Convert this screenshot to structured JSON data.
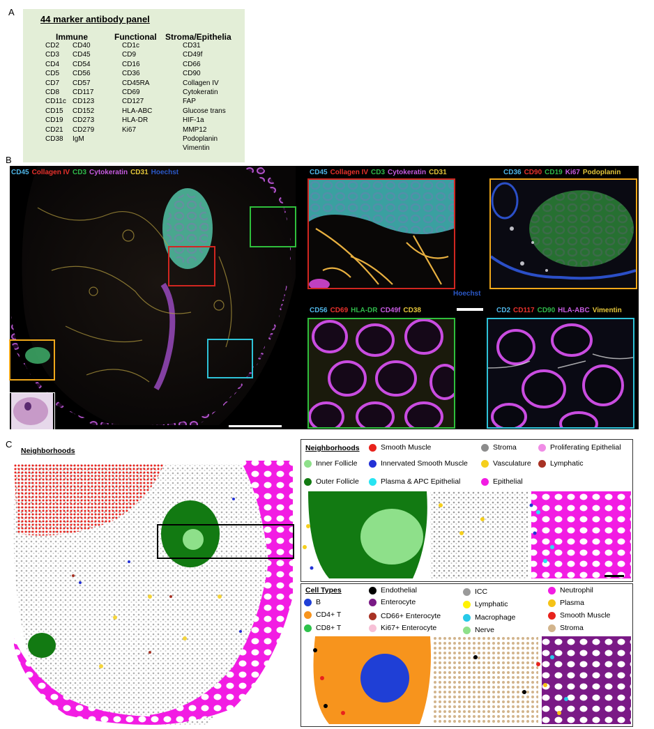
{
  "panel_a": {
    "letter": "A",
    "title": "44 marker antibody panel",
    "headers": {
      "immune": "Immune",
      "functional": "Functional",
      "stroma": "Stroma/Epithelia"
    },
    "immune_col1": [
      "CD2",
      "CD3",
      "CD4",
      "CD5",
      "CD7",
      "CD8",
      "CD11c",
      "CD15",
      "CD19",
      "CD21",
      "CD38"
    ],
    "immune_col2": [
      "CD40",
      "CD45",
      "CD54",
      "CD56",
      "CD57",
      "CD117",
      "CD123",
      "CD152",
      "CD273",
      "CD279",
      "IgM"
    ],
    "functional": [
      "CD1c",
      "CD9",
      "CD16",
      "CD36",
      "CD45RA",
      "CD69",
      "CD127",
      "HLA-ABC",
      "HLA-DR",
      "Ki67"
    ],
    "stroma": [
      "CD31",
      "CD49f",
      "CD66",
      "CD90",
      "Collagen IV",
      "Cytokeratin",
      "FAP",
      "Glucose trans",
      "HIF-1a",
      "MMP12",
      "Podoplanin",
      "Vimentin"
    ]
  },
  "panel_b": {
    "letter": "B",
    "main_labels": [
      {
        "text": "CD45",
        "color": "#4fb6e8"
      },
      {
        "text": "Collagen IV",
        "color": "#e8312c"
      },
      {
        "text": "CD3",
        "color": "#2fb84a"
      },
      {
        "text": "Cytokeratin",
        "color": "#c65be0"
      },
      {
        "text": "CD31",
        "color": "#e3c53a"
      },
      {
        "text": "Hoechst",
        "color": "#2b58c7"
      }
    ],
    "inset1_labels": [
      {
        "text": "CD45",
        "color": "#4fb6e8"
      },
      {
        "text": "Collagen IV",
        "color": "#e8312c"
      },
      {
        "text": "CD3",
        "color": "#2fb84a"
      },
      {
        "text": "Cytokeratin",
        "color": "#c65be0"
      },
      {
        "text": "CD31",
        "color": "#e3c53a"
      }
    ],
    "inset1_extra": {
      "text": "Hoechst",
      "color": "#2b58c7"
    },
    "inset2_labels": [
      {
        "text": "CD36",
        "color": "#4fb6e8"
      },
      {
        "text": "CD90",
        "color": "#e8312c"
      },
      {
        "text": "CD19",
        "color": "#2fb84a"
      },
      {
        "text": "Ki67",
        "color": "#c65be0"
      },
      {
        "text": "Podoplanin",
        "color": "#e3c53a"
      }
    ],
    "inset3_labels": [
      {
        "text": "CD56",
        "color": "#4fb6e8"
      },
      {
        "text": "CD69",
        "color": "#e8312c"
      },
      {
        "text": "HLA-DR",
        "color": "#2fb84a"
      },
      {
        "text": "CD49f",
        "color": "#c65be0"
      },
      {
        "text": "CD38",
        "color": "#e3c53a"
      }
    ],
    "inset4_labels": [
      {
        "text": "CD2",
        "color": "#4fb6e8"
      },
      {
        "text": "CD117",
        "color": "#e8312c"
      },
      {
        "text": "CD90",
        "color": "#2fb84a"
      },
      {
        "text": "HLA-ABC",
        "color": "#c65be0"
      },
      {
        "text": "Vimentin",
        "color": "#e3c53a"
      }
    ]
  },
  "panel_c": {
    "letter": "C",
    "map_title": "Neighborhoods",
    "neighborhoods_title": "Neighborhoods",
    "neighborhoods": [
      {
        "label": "Smooth Muscle",
        "color": "#e8221c"
      },
      {
        "label": "Stroma",
        "color": "#8c8c8c"
      },
      {
        "label": "Proliferating Epithelial",
        "color": "#f08ce6"
      },
      {
        "label": "Inner Follicle",
        "color": "#8ee08a"
      },
      {
        "label": "Innervated Smooth Muscle",
        "color": "#2331d6"
      },
      {
        "label": "Vasculature",
        "color": "#f5cf1c"
      },
      {
        "label": "Lymphatic",
        "color": "#a83224"
      },
      {
        "label": "Outer Follicle",
        "color": "#127a12"
      },
      {
        "label": "Plasma & APC Epithelial",
        "color": "#27e4f2"
      },
      {
        "label": "Epithelial",
        "color": "#f21ce3"
      }
    ],
    "celltypes_title": "Cell Types",
    "celltypes": [
      {
        "label": "B",
        "color": "#1f3fd6"
      },
      {
        "label": "Endothelial",
        "color": "#000000"
      },
      {
        "label": "ICC",
        "color": "#9a9a9a"
      },
      {
        "label": "Neutrophil",
        "color": "#f21ce3"
      },
      {
        "label": "Enterocyte",
        "color": "#7a1a86"
      },
      {
        "label": "Lymphatic",
        "color": "#fff200"
      },
      {
        "label": "Plasma",
        "color": "#f5c316"
      },
      {
        "label": "CD4+ T",
        "color": "#f7941d"
      },
      {
        "label": "CD66+ Enterocyte",
        "color": "#a83224"
      },
      {
        "label": "Macrophage",
        "color": "#27c9e8"
      },
      {
        "label": "Smooth Muscle",
        "color": "#e8221c"
      },
      {
        "label": "CD8+ T",
        "color": "#2dc24a"
      },
      {
        "label": "Ki67+ Enterocyte",
        "color": "#f7c0d6"
      },
      {
        "label": "Nerve",
        "color": "#8ee08a"
      },
      {
        "label": "Stroma",
        "color": "#d2b48c"
      }
    ]
  }
}
